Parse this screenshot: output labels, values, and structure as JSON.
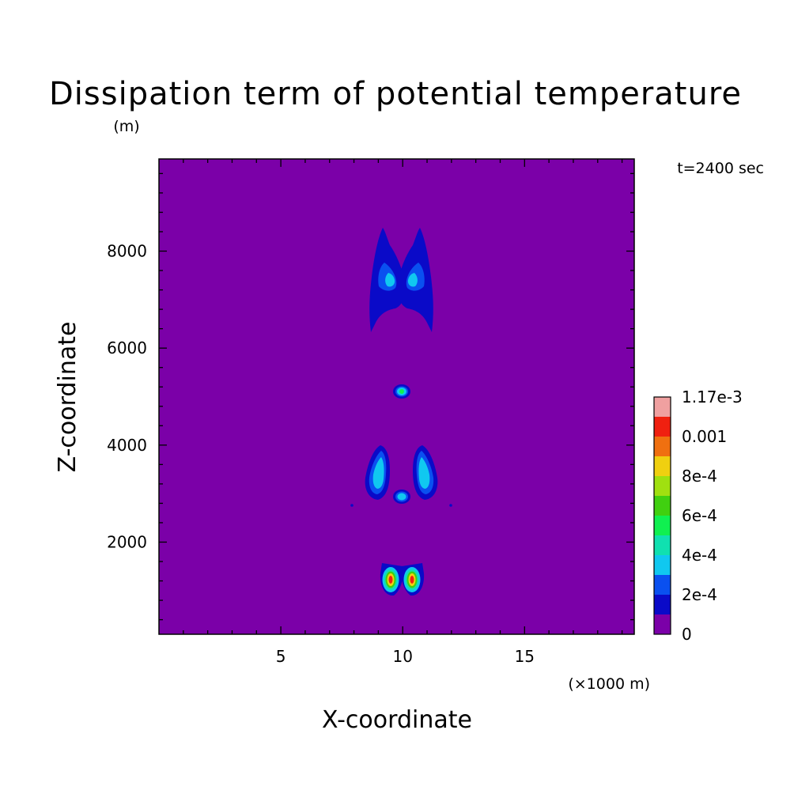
{
  "chart_data": {
    "type": "heatmap",
    "title": "Dissipation term of potential temperature",
    "xlabel": "X-coordinate",
    "ylabel": "Z-coordinate",
    "y_unit": "(m)",
    "x_unit": "(×1000 m)",
    "time_label": "t=2400 sec",
    "xlim": [
      0,
      19.5
    ],
    "ylim": [
      100,
      9900
    ],
    "x_ticks": [
      5,
      10,
      15
    ],
    "x_tick_labels": [
      "5",
      "10",
      "15"
    ],
    "y_ticks": [
      2000,
      4000,
      6000,
      8000
    ],
    "y_tick_labels": [
      "2000",
      "4000",
      "6000",
      "8000"
    ],
    "colorbar": {
      "levels": [
        0,
        0.0001,
        0.0002,
        0.0003,
        0.0004,
        0.0005,
        0.0006,
        0.0007,
        0.0008,
        0.0009,
        0.001,
        0.0011,
        0.00117
      ],
      "labels": [
        "0",
        "2e-4",
        "4e-4",
        "6e-4",
        "8e-4",
        "0.001",
        "1.17e-3"
      ],
      "label_levels": [
        0,
        2,
        4,
        6,
        8,
        10,
        12
      ],
      "colors": [
        "#7b00a8",
        "#0a0ac8",
        "#0a50f0",
        "#10c8f0",
        "#10e0b0",
        "#10f050",
        "#40d010",
        "#a0e010",
        "#f0d010",
        "#f07010",
        "#f02010",
        "#f0a0a0"
      ]
    },
    "background_color": "#7b00a8",
    "features": [
      {
        "name": "upper-left-plume",
        "x": 9.6,
        "z": 7400,
        "peak": 0.0003
      },
      {
        "name": "upper-right-plume",
        "x": 10.9,
        "z": 7400,
        "peak": 0.0003
      },
      {
        "name": "mid-center-spot",
        "x": 10.2,
        "z": 5100,
        "peak": 0.0005
      },
      {
        "name": "lower-left-plume",
        "x": 9.4,
        "z": 3350,
        "peak": 0.0003
      },
      {
        "name": "lower-right-plume",
        "x": 11.1,
        "z": 3350,
        "peak": 0.0003
      },
      {
        "name": "lower-center-spot",
        "x": 10.2,
        "z": 2900,
        "peak": 0.0003
      },
      {
        "name": "bottom-left-core",
        "x": 9.8,
        "z": 1200,
        "peak": 0.00105
      },
      {
        "name": "bottom-right-core",
        "x": 10.6,
        "z": 1200,
        "peak": 0.00105
      }
    ]
  }
}
